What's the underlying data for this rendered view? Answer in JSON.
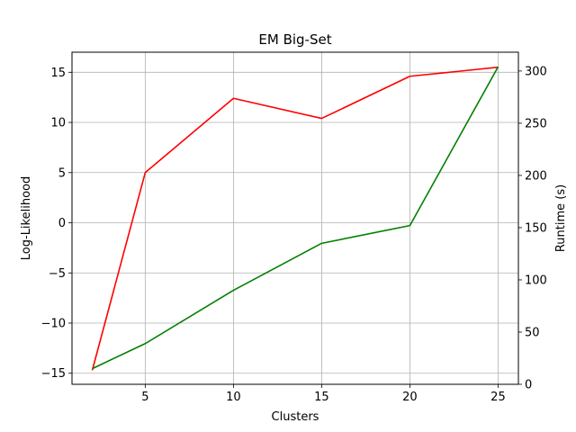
{
  "chart_data": {
    "type": "line",
    "title": "EM Big-Set",
    "xlabel": "Clusters",
    "ylabel": "Log-Likelihood",
    "ylabel_right": "Runtime (s)",
    "x": [
      2,
      5,
      10,
      15,
      20,
      25
    ],
    "xticks": [
      5,
      10,
      15,
      20,
      25
    ],
    "xlim": [
      0.85,
      26.15
    ],
    "ylim": [
      -16.1,
      17.0
    ],
    "yticks": [
      -15,
      -10,
      -5,
      0,
      5,
      10,
      15
    ],
    "ylim_right": [
      0,
      318
    ],
    "yticks_right": [
      0,
      50,
      100,
      150,
      200,
      250,
      300
    ],
    "grid": true,
    "series": [
      {
        "axis": "left",
        "color": "#ff0000",
        "values": [
          -14.7,
          5.0,
          12.4,
          10.4,
          14.6,
          15.5
        ]
      },
      {
        "axis": "right",
        "color": "#008000",
        "values": [
          15,
          39,
          90,
          135,
          152,
          304
        ]
      }
    ]
  }
}
